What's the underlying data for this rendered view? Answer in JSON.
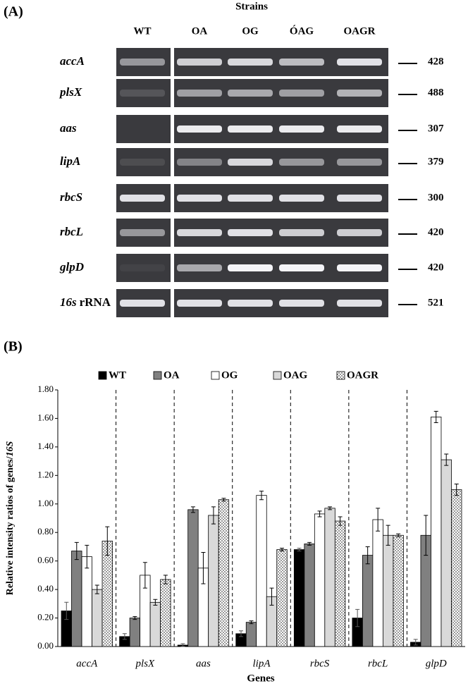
{
  "gel": {
    "label": "(A)",
    "header": "Strains",
    "lanes": [
      "WT",
      "OA",
      "OG",
      "ÓAG",
      "OAGR"
    ],
    "rows": [
      {
        "gene": "accA",
        "bp": "428"
      },
      {
        "gene": "plsX",
        "bp": "488"
      },
      {
        "gene": "aas",
        "bp": "307"
      },
      {
        "gene": "lipA",
        "bp": "379"
      },
      {
        "gene": "rbcS",
        "bp": "300"
      },
      {
        "gene": "rbcL",
        "bp": "420"
      },
      {
        "gene": "glpD",
        "bp": "420"
      },
      {
        "gene": "16s",
        "suffix": "rRNA",
        "bp": "521"
      }
    ]
  },
  "chart_data": {
    "type": "bar",
    "panel_label": "(B)",
    "y_label": "Relative intensity ratios of genes/",
    "y_label_italic": "16S",
    "x_label": "Genes",
    "categories": [
      "accA",
      "plsX",
      "aas",
      "lipA",
      "rbcS",
      "rbcL",
      "glpD"
    ],
    "series": [
      {
        "name": "WT",
        "color": "#000000",
        "values": [
          0.25,
          0.07,
          0.01,
          0.09,
          0.68,
          0.2,
          0.03
        ],
        "errors": [
          0.06,
          0.02,
          0.01,
          0.02,
          0.01,
          0.06,
          0.02
        ]
      },
      {
        "name": "OA",
        "color": "#808080",
        "values": [
          0.67,
          0.2,
          0.96,
          0.17,
          0.72,
          0.64,
          0.78
        ],
        "errors": [
          0.06,
          0.01,
          0.02,
          0.01,
          0.01,
          0.06,
          0.14
        ]
      },
      {
        "name": "OG",
        "color": "#ffffff",
        "values": [
          0.63,
          0.5,
          0.55,
          1.06,
          0.93,
          0.89,
          1.61
        ],
        "errors": [
          0.08,
          0.09,
          0.11,
          0.03,
          0.02,
          0.08,
          0.04
        ]
      },
      {
        "name": "OAG",
        "color": "#d9d9d9",
        "values": [
          0.4,
          0.31,
          0.92,
          0.35,
          0.97,
          0.78,
          1.31
        ],
        "errors": [
          0.03,
          0.02,
          0.06,
          0.06,
          0.01,
          0.07,
          0.04
        ]
      },
      {
        "name": "OAGR",
        "color": "#ffffff",
        "pattern": "dots",
        "values": [
          0.74,
          0.47,
          1.03,
          0.68,
          0.88,
          0.78,
          1.1
        ],
        "errors": [
          0.1,
          0.03,
          0.01,
          0.01,
          0.03,
          0.01,
          0.04
        ]
      }
    ],
    "ylim": [
      0,
      1.8
    ],
    "yticks": [
      {
        "value": 0,
        "label": "0.00"
      },
      {
        "value": 0.2,
        "label": "0.20"
      },
      {
        "value": 0.4,
        "label": "0.40"
      },
      {
        "value": 0.6,
        "label": "0.60"
      },
      {
        "value": 0.8,
        "label": "0.80"
      },
      {
        "value": 1.0,
        "label": "1.00"
      },
      {
        "value": 1.2,
        "label": "1.20"
      },
      {
        "value": 1.4,
        "label": "1.40"
      },
      {
        "value": 1.6,
        "label": "1.60"
      },
      {
        "value": 1.8,
        "label": "1.80"
      }
    ],
    "legend": "top",
    "separators": "dashed"
  }
}
